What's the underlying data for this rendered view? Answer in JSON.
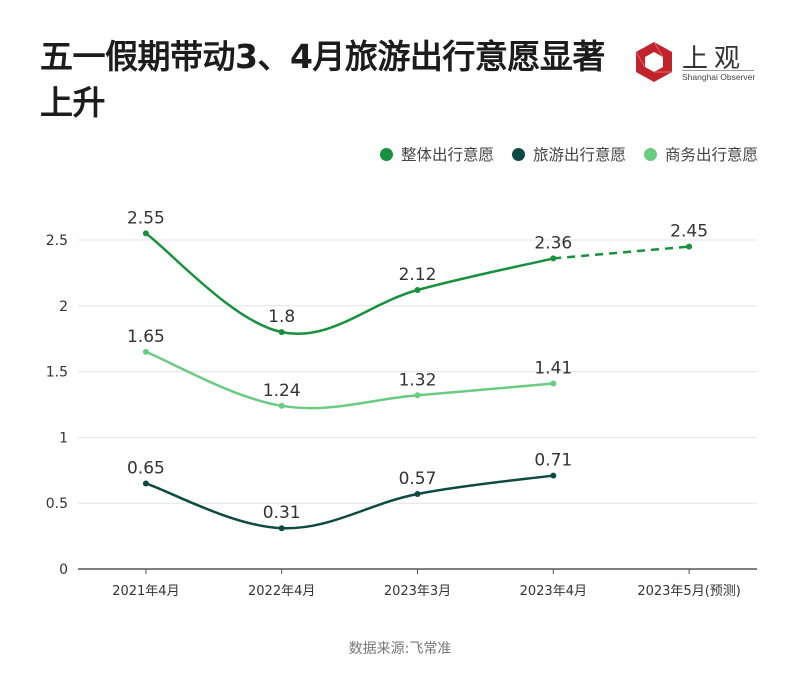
{
  "title": "五一假期带动3、4月旅游出行意愿显著上升",
  "logo": {
    "cn": "上观",
    "en": "Shanghai Observer",
    "colors": {
      "red": "#c0232b"
    }
  },
  "source": "数据来源:飞常准",
  "chart_data": {
    "type": "line",
    "title": "五一假期带动3、4月旅游出行意愿显著上升",
    "xlabel": "",
    "ylabel": "",
    "categories": [
      "2021年4月",
      "2022年4月",
      "2023年3月",
      "2023年4月",
      "2023年5月(预测)"
    ],
    "ylim": [
      0,
      2.5
    ],
    "yticks": [
      "0",
      "0.5",
      "1",
      "1.5",
      "2",
      "2.5"
    ],
    "ytick_values": [
      0,
      0.5,
      1,
      1.5,
      2,
      2.5
    ],
    "grid": true,
    "legend_position": "top-right",
    "series": [
      {
        "name": "整体出行意愿",
        "color": "#17913c",
        "values": [
          2.55,
          1.8,
          2.12,
          2.36,
          2.45
        ],
        "labels": [
          "2.55",
          "1.8",
          "2.12",
          "2.36",
          "2.45"
        ],
        "forecast_from_index": 3
      },
      {
        "name": "旅游出行意愿",
        "color": "#0d4a43",
        "values": [
          0.65,
          0.31,
          0.57,
          0.71,
          null
        ],
        "labels": [
          "0.65",
          "0.31",
          "0.57",
          "0.71"
        ]
      },
      {
        "name": "商务出行意愿",
        "color": "#6acb82",
        "values": [
          1.65,
          1.24,
          1.32,
          1.41,
          null
        ],
        "labels": [
          "1.65",
          "1.24",
          "1.32",
          "1.41"
        ]
      }
    ]
  }
}
